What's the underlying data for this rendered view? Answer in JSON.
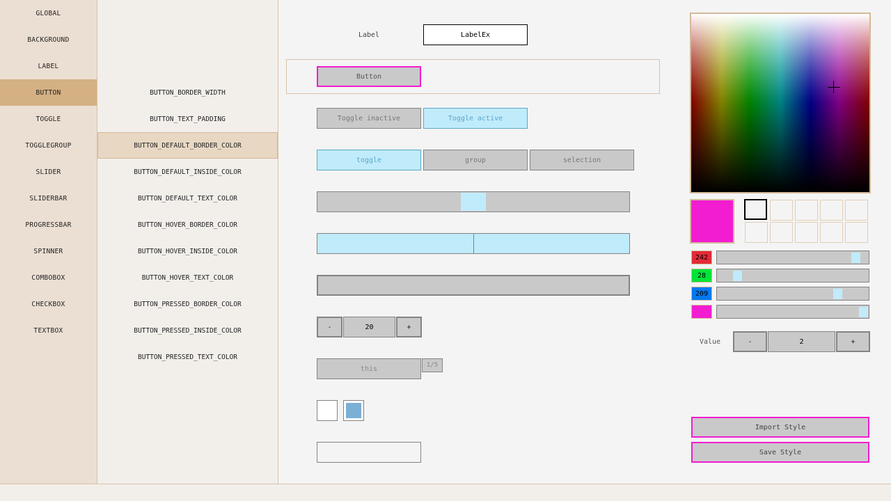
{
  "controls": [
    "GLOBAL",
    "BACKGROUND",
    "LABEL",
    "BUTTON",
    "TOGGLE",
    "TOGGLEGROUP",
    "SLIDER",
    "SLIDERBAR",
    "PROGRESSBAR",
    "SPINNER",
    "COMBOBOX",
    "CHECKBOX",
    "TEXTBOX"
  ],
  "selected_control": "BUTTON",
  "properties": [
    "BUTTON_BORDER_WIDTH",
    "BUTTON_TEXT_PADDING",
    "BUTTON_DEFAULT_BORDER_COLOR",
    "BUTTON_DEFAULT_INSIDE_COLOR",
    "BUTTON_DEFAULT_TEXT_COLOR",
    "BUTTON_HOVER_BORDER_COLOR",
    "BUTTON_HOVER_INSIDE_COLOR",
    "BUTTON_HOVER_TEXT_COLOR",
    "BUTTON_PRESSED_BORDER_COLOR",
    "BUTTON_PRESSED_INSIDE_COLOR",
    "BUTTON_PRESSED_TEXT_COLOR"
  ],
  "selected_property": "BUTTON_DEFAULT_BORDER_COLOR",
  "preview": {
    "label": "Label",
    "labelex": "LabelEx",
    "button": "Button",
    "toggle_inactive": "Toggle inactive",
    "toggle_active": "Toggle active",
    "toggle_group": [
      "toggle",
      "group",
      "selection"
    ],
    "slider_value": 0.5,
    "sliderbar_value": 0.5,
    "spinner": {
      "minus": "-",
      "value": "20",
      "plus": "+"
    },
    "combobox": {
      "value": "this",
      "counter": "1/5"
    },
    "checkbox_checked": [
      false,
      true
    ],
    "textbox_value": ""
  },
  "picker": {
    "color": "#f21cd1",
    "r": "242",
    "g": "28",
    "b": "209",
    "alpha": 255,
    "value_label": "Value",
    "value": "2",
    "minus": "-",
    "plus": "+",
    "import": "Import Style",
    "save": "Save Style"
  }
}
